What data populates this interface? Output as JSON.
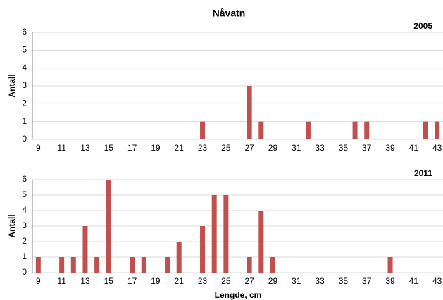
{
  "title": "Nåvatn",
  "chart_data": [
    {
      "type": "bar",
      "subtitle": "2005",
      "y_label": "Antall",
      "categories": [
        "9",
        null,
        "11",
        null,
        "13",
        null,
        "15",
        null,
        "17",
        null,
        "19",
        null,
        "21",
        null,
        "23",
        null,
        "25",
        null,
        "27",
        null,
        "29",
        null,
        "31",
        null,
        "33",
        null,
        "35",
        null,
        "37",
        null,
        "39",
        null,
        "41",
        null,
        "43"
      ],
      "values": [
        0,
        0,
        0,
        0,
        0,
        0,
        0,
        0,
        0,
        0,
        0,
        0,
        0,
        0,
        1,
        0,
        0,
        0,
        3,
        1,
        0,
        0,
        0,
        1,
        0,
        0,
        0,
        1,
        1,
        0,
        0,
        0,
        0,
        1,
        1
      ],
      "color": "#c0504d",
      "ylim": [
        0,
        6
      ],
      "yticks": [
        0,
        1,
        2,
        3,
        4,
        5,
        6
      ],
      "grid": true
    },
    {
      "type": "bar",
      "subtitle": "2011",
      "y_label": "Antall",
      "x_label": "Lengde, cm",
      "categories": [
        "9",
        null,
        "11",
        null,
        "13",
        null,
        "15",
        null,
        "17",
        null,
        "19",
        null,
        "21",
        null,
        "23",
        null,
        "25",
        null,
        "27",
        null,
        "29",
        null,
        "31",
        null,
        "33",
        null,
        "35",
        null,
        "37",
        null,
        "39",
        null,
        "41",
        null,
        "43"
      ],
      "values": [
        1,
        0,
        1,
        1,
        3,
        1,
        6,
        0,
        1,
        1,
        0,
        1,
        2,
        0,
        3,
        5,
        5,
        0,
        1,
        4,
        1,
        0,
        0,
        0,
        0,
        0,
        0,
        0,
        0,
        0,
        1,
        0,
        0,
        0,
        0
      ],
      "color": "#c0504d",
      "ylim": [
        0,
        6
      ],
      "yticks": [
        0,
        1,
        2,
        3,
        4,
        5,
        6
      ],
      "grid": true
    }
  ]
}
